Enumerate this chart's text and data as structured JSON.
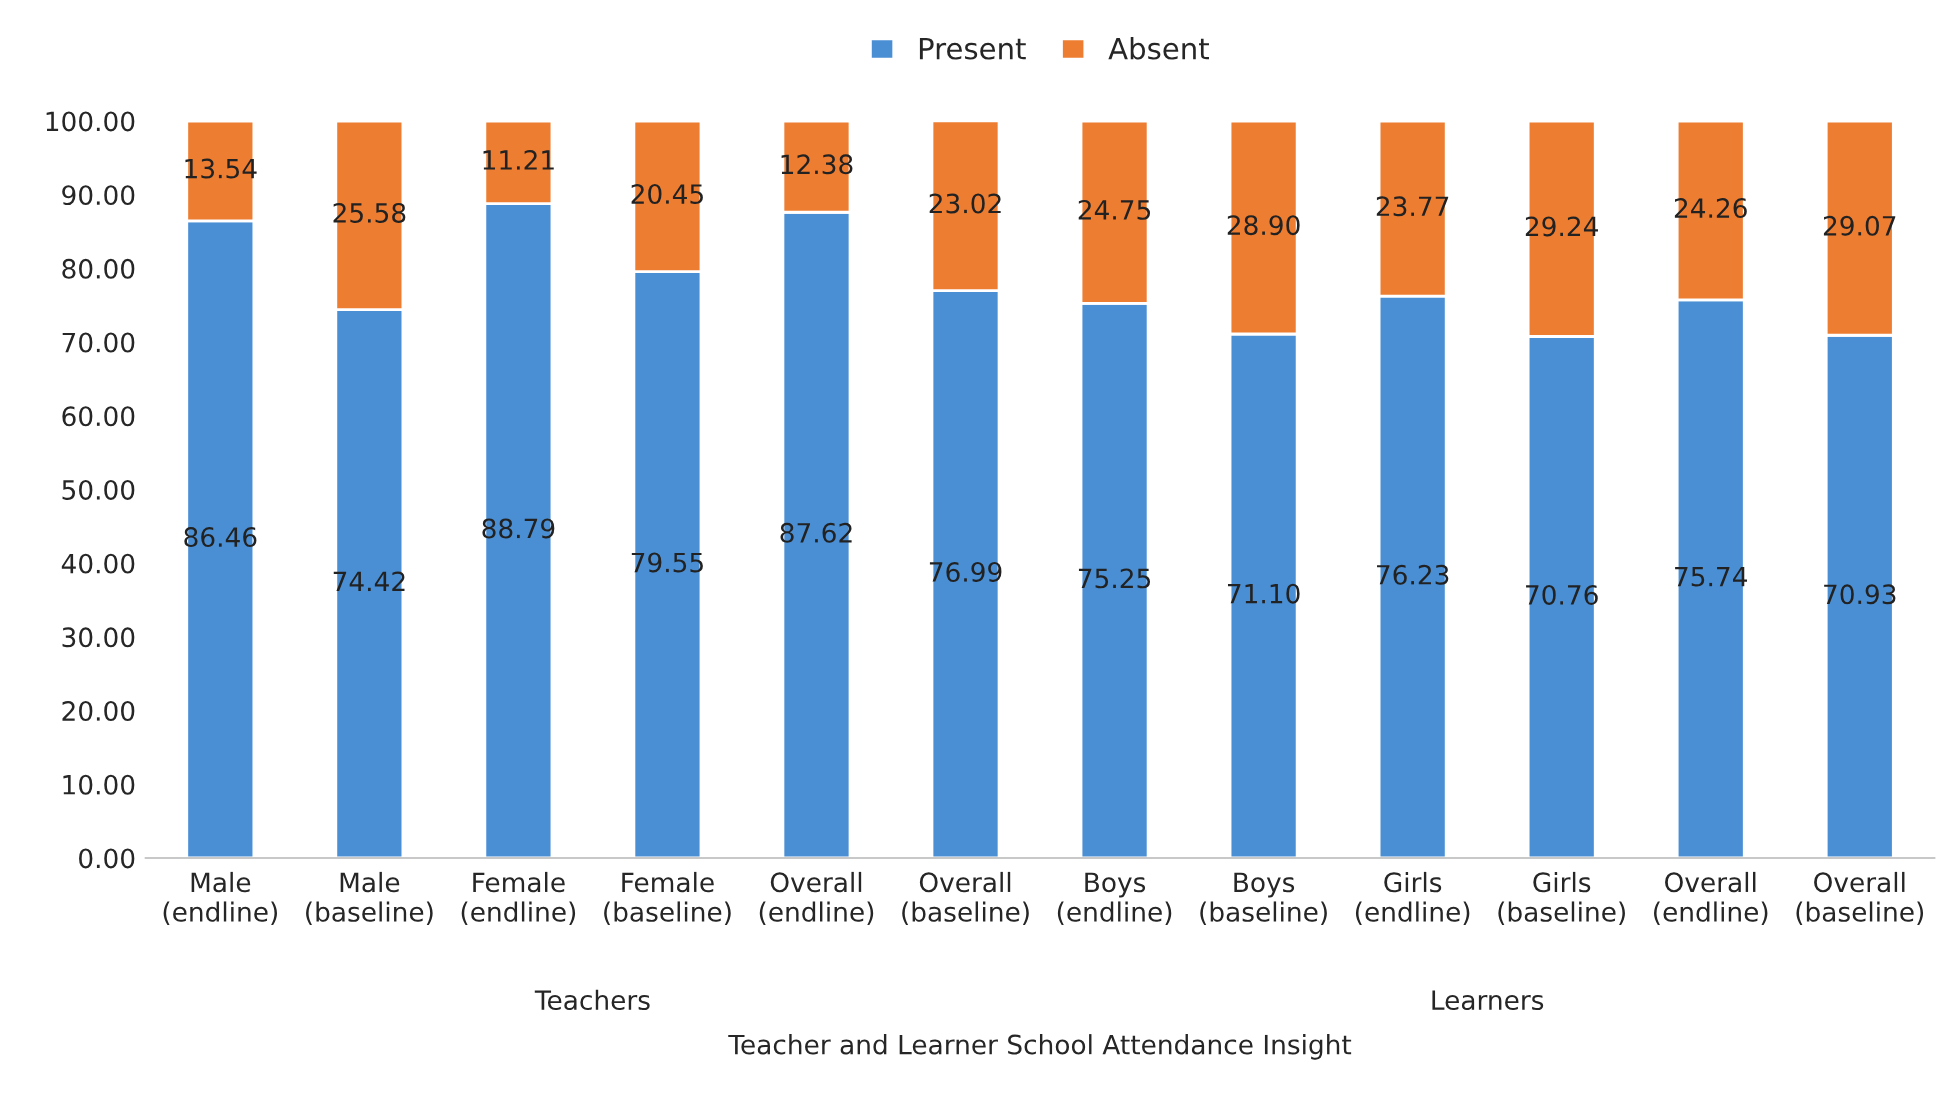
{
  "chart_data": {
    "type": "bar",
    "stacked": true,
    "xlabel": "Teacher and Learner School Attendance Insight",
    "categories": [
      "Male\n(endline)",
      "Male\n(baseline)",
      "Female\n(endline)",
      "Female\n(baseline)",
      "Overall\n(endline)",
      "Overall\n(baseline)",
      "Boys\n(endline)",
      "Boys\n(baseline)",
      "Girls\n(endline)",
      "Girls\n(baseline)",
      "Overall\n(endline)",
      "Overall\n(baseline)"
    ],
    "annotations": [
      "Teachers",
      "Learners"
    ],
    "series": [
      {
        "name": "Present",
        "color": "#4a8fd4",
        "values": [
          86.46,
          74.42,
          88.79,
          79.55,
          87.62,
          76.99,
          75.25,
          71.1,
          76.23,
          70.76,
          75.74,
          70.93
        ],
        "value_labels": [
          "86.46",
          "74.42",
          "88.79",
          "79.55",
          "87.62",
          "76.99",
          "75.25",
          "71.10",
          "76.23",
          "70.76",
          "75.74",
          "70.93"
        ]
      },
      {
        "name": "Absent",
        "color": "#ed7d31",
        "values": [
          13.54,
          25.58,
          11.21,
          20.45,
          12.38,
          23.02,
          24.75,
          28.9,
          23.77,
          29.24,
          24.26,
          29.07
        ],
        "value_labels": [
          "13.54",
          "25.58",
          "11.21",
          "20.45",
          "12.38",
          "23.02",
          "24.75",
          "28.90",
          "23.77",
          "29.24",
          "24.26",
          "29.07"
        ]
      }
    ],
    "ylim": [
      0,
      100
    ],
    "yticks": [
      {
        "value": 0,
        "label": "0.00"
      },
      {
        "value": 10,
        "label": "10.00"
      },
      {
        "value": 20,
        "label": "20.00"
      },
      {
        "value": 30,
        "label": "30.00"
      },
      {
        "value": 40,
        "label": "40.00"
      },
      {
        "value": 50,
        "label": "50.00"
      },
      {
        "value": 60,
        "label": "60.00"
      },
      {
        "value": 70,
        "label": "70.00"
      },
      {
        "value": 80,
        "label": "80.00"
      },
      {
        "value": 90,
        "label": "90.00"
      },
      {
        "value": 100,
        "label": "100.00"
      }
    ],
    "legend": "top",
    "grid": false
  }
}
